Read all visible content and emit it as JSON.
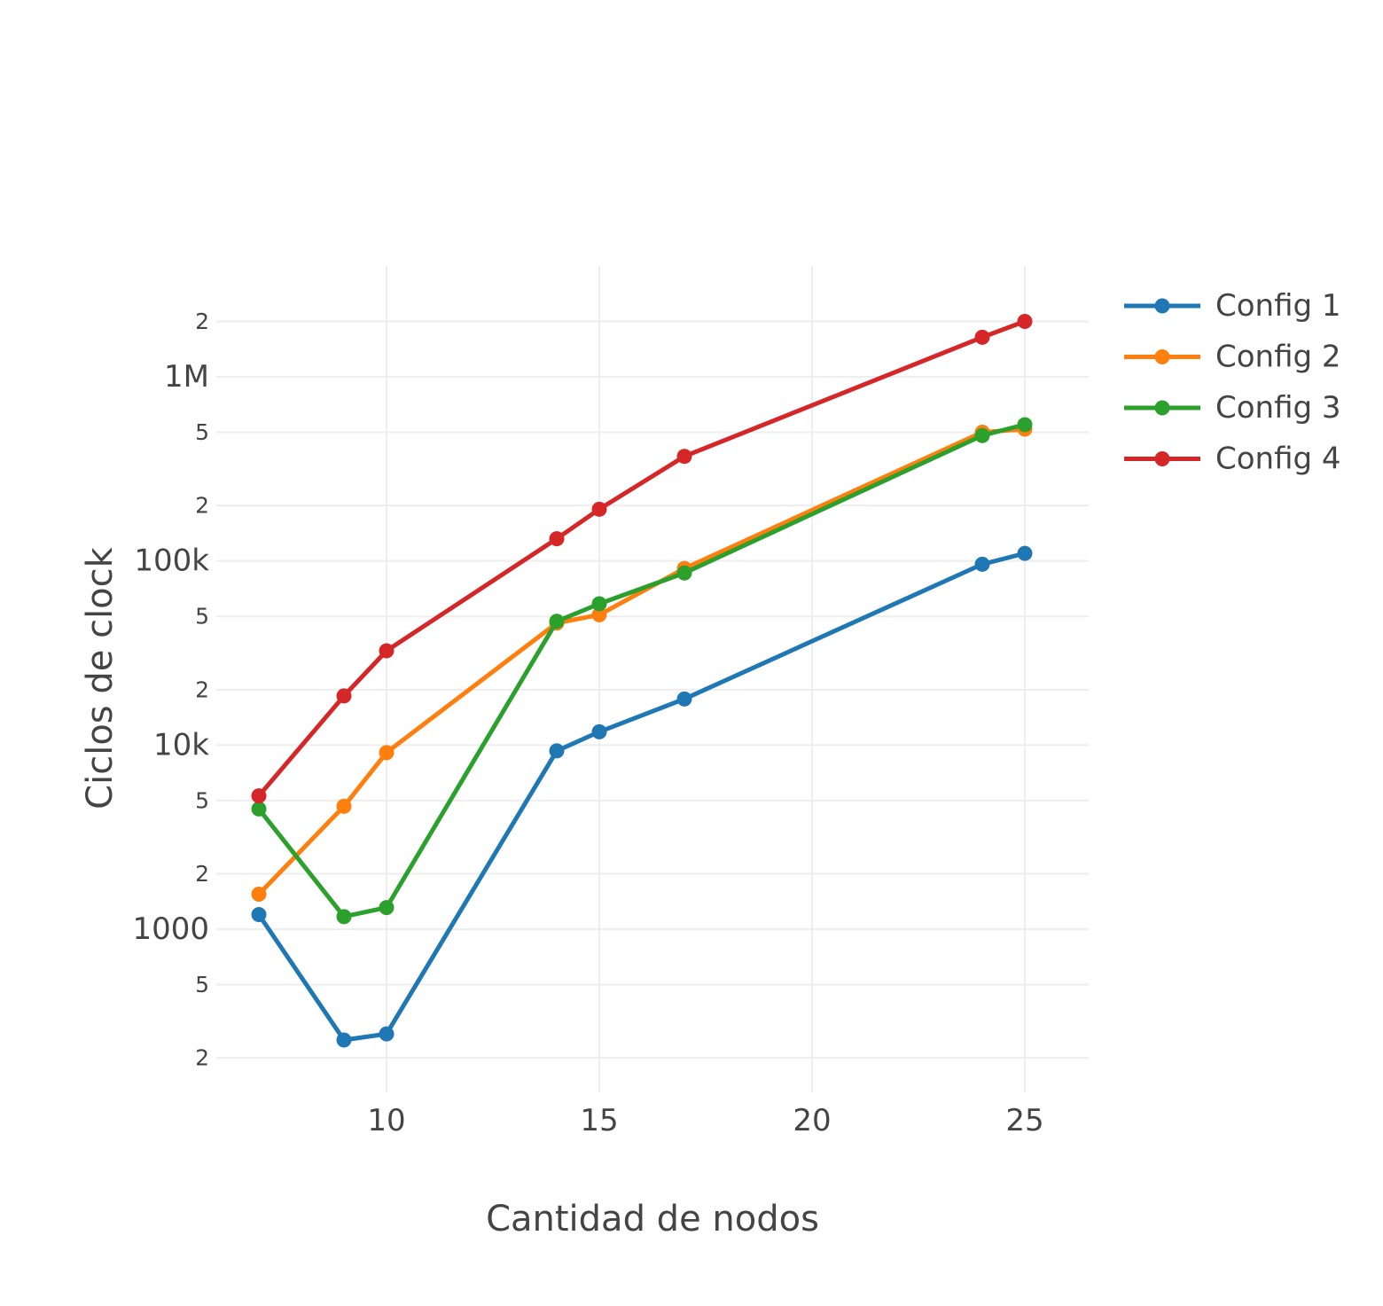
{
  "chart_data": {
    "type": "line",
    "title": "",
    "xlabel": "Cantidad de nodos",
    "ylabel": "Ciclos de clock",
    "xlim": [
      6,
      26.5
    ],
    "ylim": [
      130,
      4000000
    ],
    "y_scale": "log",
    "x_ticks": [
      10,
      15,
      20,
      25
    ],
    "y_major_ticks": [
      {
        "value": 1000,
        "label": "1000"
      },
      {
        "value": 10000,
        "label": "10k"
      },
      {
        "value": 100000,
        "label": "100k"
      },
      {
        "value": 1000000,
        "label": "1M"
      }
    ],
    "y_minor_ticks": [
      {
        "value": 200,
        "label": "2"
      },
      {
        "value": 500,
        "label": "5"
      },
      {
        "value": 2000,
        "label": "2"
      },
      {
        "value": 5000,
        "label": "5"
      },
      {
        "value": 20000,
        "label": "2"
      },
      {
        "value": 50000,
        "label": "5"
      },
      {
        "value": 200000,
        "label": "2"
      },
      {
        "value": 500000,
        "label": "5"
      },
      {
        "value": 2000000,
        "label": "2"
      }
    ],
    "grid": true,
    "legend_position": "top-right",
    "series": [
      {
        "name": "Config 1",
        "color": "#1f77b4",
        "x": [
          7,
          9,
          10,
          14,
          15,
          17,
          24,
          25
        ],
        "y": [
          1200,
          250,
          270,
          9300,
          11800,
          17800,
          96000,
          110000
        ]
      },
      {
        "name": "Config 2",
        "color": "#ff7f0e",
        "x": [
          7,
          9,
          10,
          14,
          15,
          17,
          24,
          25
        ],
        "y": [
          1550,
          4650,
          9100,
          46000,
          51000,
          91000,
          500000,
          520000
        ]
      },
      {
        "name": "Config 3",
        "color": "#2ca02c",
        "x": [
          7,
          9,
          10,
          14,
          15,
          17,
          24,
          25
        ],
        "y": [
          4500,
          1170,
          1310,
          47000,
          58500,
          86000,
          480000,
          550000
        ]
      },
      {
        "name": "Config 4",
        "color": "#d62728",
        "x": [
          7,
          9,
          10,
          14,
          15,
          17,
          24,
          25
        ],
        "y": [
          5300,
          18500,
          32500,
          132000,
          191000,
          370000,
          1640000,
          2000000
        ]
      }
    ]
  }
}
